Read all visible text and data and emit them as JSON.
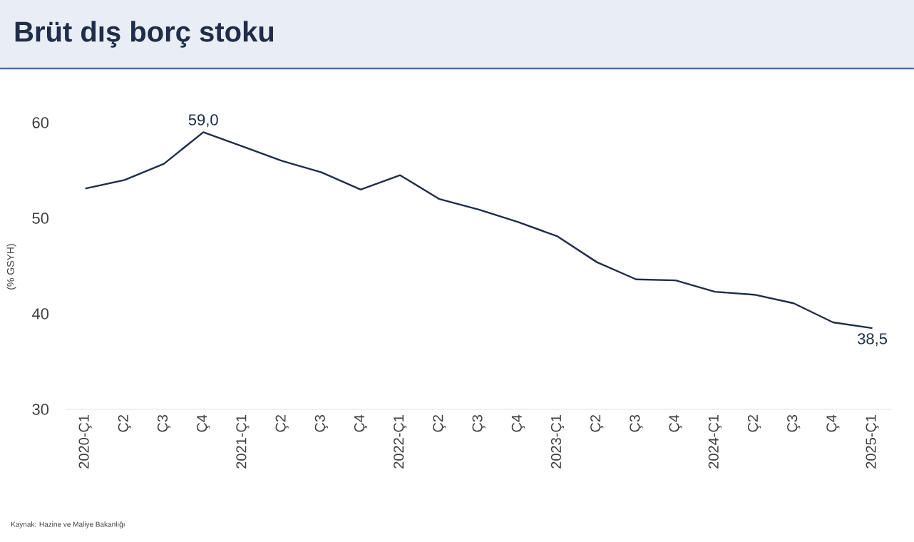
{
  "chart_data": {
    "type": "line",
    "title": "Brüt dış borç stoku",
    "ylabel": "(% GSYH)",
    "categories": [
      "2020-Ç1",
      "Ç2",
      "Ç3",
      "Ç4",
      "2021-Ç1",
      "Ç2",
      "Ç3",
      "Ç4",
      "2022-Ç1",
      "Ç2",
      "Ç3",
      "Ç4",
      "2023-Ç1",
      "Ç2",
      "Ç3",
      "Ç4",
      "2024-Ç1",
      "Ç2",
      "Ç3",
      "Ç4",
      "2025-Ç1"
    ],
    "series": [
      {
        "color": "#1f2d4a",
        "values": [
          53.1,
          54.0,
          55.7,
          59.0,
          57.5,
          56.0,
          54.8,
          53.0,
          54.5,
          52.0,
          50.9,
          49.6,
          48.1,
          45.4,
          43.6,
          43.5,
          42.3,
          42.0,
          41.1,
          39.1,
          38.5
        ],
        "value_labels": [
          null,
          null,
          null,
          "59,0",
          null,
          null,
          null,
          null,
          null,
          null,
          null,
          null,
          null,
          null,
          null,
          null,
          null,
          null,
          null,
          null,
          "38,5"
        ]
      }
    ],
    "ylim": [
      30,
      60
    ],
    "yticks": [
      30,
      40,
      50,
      60
    ],
    "grid": false,
    "marker": "none",
    "line_style": "solid",
    "annotations": [
      "Kaynak: Hazine ve Maliye Bakanlığı"
    ]
  }
}
